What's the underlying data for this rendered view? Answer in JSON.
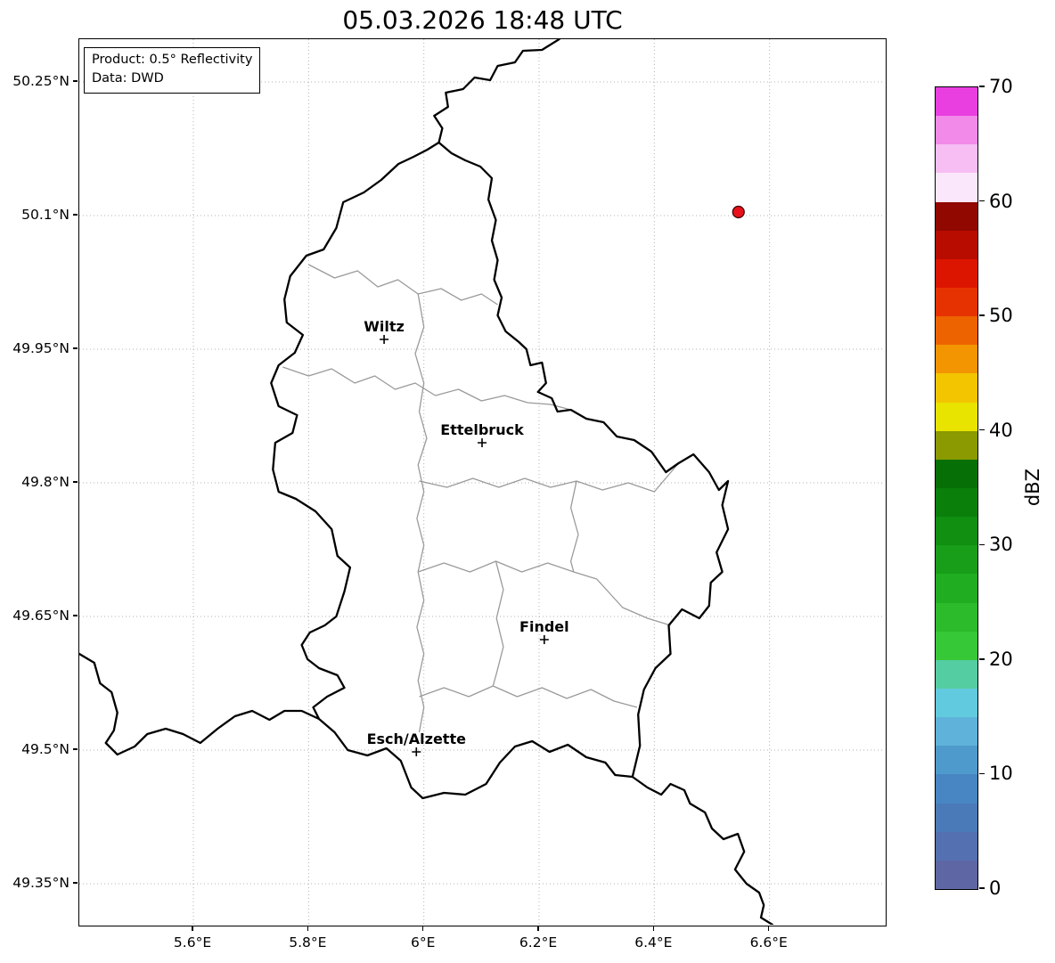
{
  "title": "05.03.2026 18:48 UTC",
  "info_box": {
    "line1": "Product: 0.5° Reflectivity",
    "line2": "Data: DWD"
  },
  "map": {
    "lon_min": 5.402,
    "lon_max": 6.8,
    "lat_min": 49.304,
    "lat_max": 50.298,
    "x_ticks": [
      {
        "lon": 5.6,
        "label": "5.6°E"
      },
      {
        "lon": 5.8,
        "label": "5.8°E"
      },
      {
        "lon": 6.0,
        "label": "6°E"
      },
      {
        "lon": 6.2,
        "label": "6.2°E"
      },
      {
        "lon": 6.4,
        "label": "6.4°E"
      },
      {
        "lon": 6.6,
        "label": "6.6°E"
      }
    ],
    "y_ticks": [
      {
        "lat": 50.25,
        "label": "50.25°N"
      },
      {
        "lat": 50.1,
        "label": "50.1°N"
      },
      {
        "lat": 49.95,
        "label": "49.95°N"
      },
      {
        "lat": 49.8,
        "label": "49.8°N"
      },
      {
        "lat": 49.65,
        "label": "49.65°N"
      },
      {
        "lat": 49.5,
        "label": "49.5°N"
      },
      {
        "lat": 49.35,
        "label": "49.35°N"
      }
    ],
    "cities": [
      {
        "name": "Wiltz",
        "lon": 5.931,
        "lat": 49.961
      },
      {
        "name": "Ettelbruck",
        "lon": 6.101,
        "lat": 49.845
      },
      {
        "name": "Findel",
        "lon": 6.209,
        "lat": 49.624
      },
      {
        "name": "Esch/Alzette",
        "lon": 5.987,
        "lat": 49.498
      }
    ],
    "marker": {
      "lon": 6.546,
      "lat": 50.104,
      "color": "#e8111b",
      "edge_color": "#3a0000"
    },
    "borders": {
      "country": [
        [
          [
            6.026,
            50.182
          ],
          [
            6.048,
            50.17
          ],
          [
            6.072,
            50.162
          ],
          [
            6.098,
            50.155
          ],
          [
            6.118,
            50.142
          ],
          [
            6.112,
            50.118
          ],
          [
            6.125,
            50.095
          ],
          [
            6.118,
            50.072
          ],
          [
            6.128,
            50.05
          ],
          [
            6.122,
            50.028
          ],
          [
            6.135,
            50.008
          ],
          [
            6.128,
            49.988
          ],
          [
            6.142,
            49.97
          ],
          [
            6.165,
            49.958
          ],
          [
            6.178,
            49.95
          ],
          [
            6.185,
            49.932
          ],
          [
            6.205,
            49.935
          ],
          [
            6.212,
            49.912
          ],
          [
            6.198,
            49.902
          ],
          [
            6.222,
            49.895
          ],
          [
            6.232,
            49.88
          ],
          [
            6.255,
            49.882
          ],
          [
            6.282,
            49.872
          ],
          [
            6.312,
            49.868
          ],
          [
            6.335,
            49.852
          ],
          [
            6.365,
            49.848
          ],
          [
            6.395,
            49.835
          ],
          [
            6.42,
            49.812
          ],
          [
            6.442,
            49.822
          ],
          [
            6.468,
            49.832
          ],
          [
            6.495,
            49.812
          ],
          [
            6.512,
            49.792
          ],
          [
            6.528,
            49.802
          ],
          [
            6.518,
            49.775
          ],
          [
            6.528,
            49.748
          ],
          [
            6.508,
            49.722
          ],
          [
            6.518,
            49.7
          ],
          [
            6.498,
            49.688
          ],
          [
            6.495,
            49.662
          ],
          [
            6.478,
            49.648
          ],
          [
            6.448,
            49.658
          ],
          [
            6.425,
            49.64
          ],
          [
            6.428,
            49.608
          ],
          [
            6.402,
            49.592
          ],
          [
            6.382,
            49.568
          ],
          [
            6.372,
            49.54
          ],
          [
            6.375,
            49.505
          ],
          [
            6.362,
            49.47
          ],
          [
            6.332,
            49.472
          ],
          [
            6.315,
            49.486
          ],
          [
            6.282,
            49.492
          ],
          [
            6.25,
            49.506
          ],
          [
            6.218,
            49.498
          ],
          [
            6.188,
            49.51
          ],
          [
            6.158,
            49.504
          ],
          [
            6.132,
            49.486
          ],
          [
            6.108,
            49.462
          ],
          [
            6.072,
            49.45
          ],
          [
            6.035,
            49.452
          ],
          [
            5.998,
            49.446
          ],
          [
            5.978,
            49.458
          ],
          [
            5.96,
            49.488
          ],
          [
            5.935,
            49.502
          ],
          [
            5.902,
            49.494
          ],
          [
            5.868,
            49.5
          ],
          [
            5.845,
            49.52
          ],
          [
            5.818,
            49.535
          ],
          [
            5.808,
            49.548
          ],
          [
            5.832,
            49.56
          ],
          [
            5.862,
            49.57
          ],
          [
            5.85,
            49.584
          ],
          [
            5.818,
            49.592
          ],
          [
            5.798,
            49.602
          ],
          [
            5.788,
            49.618
          ],
          [
            5.802,
            49.632
          ],
          [
            5.828,
            49.64
          ],
          [
            5.848,
            49.65
          ],
          [
            5.862,
            49.678
          ],
          [
            5.872,
            49.705
          ],
          [
            5.85,
            49.718
          ],
          [
            5.84,
            49.748
          ],
          [
            5.812,
            49.768
          ],
          [
            5.778,
            49.782
          ],
          [
            5.748,
            49.79
          ],
          [
            5.738,
            49.815
          ],
          [
            5.742,
            49.845
          ],
          [
            5.772,
            49.856
          ],
          [
            5.78,
            49.876
          ],
          [
            5.748,
            49.886
          ],
          [
            5.735,
            49.912
          ],
          [
            5.748,
            49.932
          ],
          [
            5.776,
            49.946
          ],
          [
            5.79,
            49.966
          ],
          [
            5.762,
            49.98
          ],
          [
            5.758,
            50.006
          ],
          [
            5.768,
            50.032
          ],
          [
            5.796,
            50.055
          ],
          [
            5.826,
            50.062
          ],
          [
            5.848,
            50.086
          ],
          [
            5.86,
            50.115
          ],
          [
            5.896,
            50.126
          ],
          [
            5.926,
            50.14
          ],
          [
            5.956,
            50.158
          ],
          [
            5.982,
            50.166
          ],
          [
            6.006,
            50.174
          ],
          [
            6.026,
            50.182
          ]
        ],
        [
          [
            6.026,
            50.182
          ],
          [
            6.032,
            50.198
          ],
          [
            6.018,
            50.212
          ],
          [
            6.042,
            50.222
          ],
          [
            6.038,
            50.238
          ],
          [
            6.068,
            50.242
          ],
          [
            6.088,
            50.255
          ],
          [
            6.115,
            50.252
          ],
          [
            6.128,
            50.268
          ],
          [
            6.158,
            50.272
          ],
          [
            6.172,
            50.285
          ],
          [
            6.205,
            50.286
          ],
          [
            6.235,
            50.298
          ]
        ],
        [
          [
            5.402,
            49.608
          ],
          [
            5.428,
            49.598
          ],
          [
            5.438,
            49.575
          ],
          [
            5.458,
            49.565
          ],
          [
            5.468,
            49.542
          ],
          [
            5.462,
            49.522
          ],
          [
            5.448,
            49.508
          ],
          [
            5.468,
            49.495
          ],
          [
            5.498,
            49.504
          ],
          [
            5.52,
            49.518
          ],
          [
            5.552,
            49.524
          ],
          [
            5.582,
            49.518
          ],
          [
            5.612,
            49.508
          ],
          [
            5.642,
            49.524
          ],
          [
            5.672,
            49.538
          ],
          [
            5.702,
            49.544
          ],
          [
            5.732,
            49.534
          ],
          [
            5.758,
            49.544
          ],
          [
            5.788,
            49.544
          ],
          [
            5.818,
            49.535
          ]
        ],
        [
          [
            6.362,
            49.47
          ],
          [
            6.388,
            49.458
          ],
          [
            6.412,
            49.45
          ],
          [
            6.428,
            49.462
          ],
          [
            6.452,
            49.455
          ],
          [
            6.462,
            49.44
          ],
          [
            6.488,
            49.43
          ],
          [
            6.5,
            49.412
          ],
          [
            6.52,
            49.4
          ],
          [
            6.545,
            49.406
          ],
          [
            6.556,
            49.386
          ],
          [
            6.54,
            49.366
          ],
          [
            6.56,
            49.35
          ],
          [
            6.582,
            49.34
          ],
          [
            6.59,
            49.326
          ],
          [
            6.585,
            49.312
          ],
          [
            6.605,
            49.304
          ]
        ]
      ],
      "regions": [
        [
          [
            5.8,
            50.045
          ],
          [
            5.845,
            50.03
          ],
          [
            5.885,
            50.038
          ],
          [
            5.92,
            50.02
          ],
          [
            5.955,
            50.028
          ],
          [
            5.99,
            50.012
          ],
          [
            6.03,
            50.018
          ],
          [
            6.065,
            50.005
          ],
          [
            6.1,
            50.012
          ],
          [
            6.128,
            50.0
          ]
        ],
        [
          [
            5.755,
            49.93
          ],
          [
            5.8,
            49.92
          ],
          [
            5.84,
            49.928
          ],
          [
            5.88,
            49.912
          ],
          [
            5.915,
            49.92
          ],
          [
            5.95,
            49.905
          ],
          [
            5.985,
            49.912
          ],
          [
            6.02,
            49.898
          ],
          [
            6.06,
            49.905
          ],
          [
            6.1,
            49.892
          ],
          [
            6.14,
            49.898
          ],
          [
            6.18,
            49.89
          ],
          [
            6.22,
            49.888
          ],
          [
            6.255,
            49.882
          ]
        ],
        [
          [
            5.99,
            50.012
          ],
          [
            6.0,
            49.975
          ],
          [
            5.985,
            49.945
          ],
          [
            6.0,
            49.912
          ],
          [
            5.992,
            49.88
          ],
          [
            6.005,
            49.85
          ],
          [
            5.99,
            49.82
          ],
          [
            6.0,
            49.79
          ],
          [
            5.988,
            49.76
          ],
          [
            6.0,
            49.73
          ],
          [
            5.99,
            49.7
          ],
          [
            6.0,
            49.668
          ],
          [
            5.988,
            49.638
          ],
          [
            6.0,
            49.608
          ],
          [
            5.99,
            49.578
          ],
          [
            6.0,
            49.548
          ],
          [
            5.992,
            49.52
          ]
        ],
        [
          [
            5.992,
            49.802
          ],
          [
            6.04,
            49.795
          ],
          [
            6.085,
            49.805
          ],
          [
            6.13,
            49.795
          ],
          [
            6.175,
            49.805
          ],
          [
            6.22,
            49.795
          ],
          [
            6.265,
            49.802
          ],
          [
            6.31,
            49.792
          ],
          [
            6.355,
            49.8
          ],
          [
            6.4,
            49.79
          ],
          [
            6.442,
            49.822
          ]
        ],
        [
          [
            5.99,
            49.7
          ],
          [
            6.035,
            49.71
          ],
          [
            6.08,
            49.7
          ],
          [
            6.125,
            49.712
          ],
          [
            6.17,
            49.7
          ],
          [
            6.215,
            49.71
          ],
          [
            6.26,
            49.7
          ],
          [
            6.3,
            49.692
          ],
          [
            6.345,
            49.66
          ],
          [
            6.388,
            49.648
          ],
          [
            6.428,
            49.64
          ]
        ],
        [
          [
            5.992,
            49.56
          ],
          [
            6.035,
            49.57
          ],
          [
            6.078,
            49.56
          ],
          [
            6.12,
            49.572
          ],
          [
            6.162,
            49.56
          ],
          [
            6.205,
            49.57
          ],
          [
            6.248,
            49.558
          ],
          [
            6.29,
            49.568
          ],
          [
            6.33,
            49.555
          ],
          [
            6.37,
            49.548
          ]
        ],
        [
          [
            6.265,
            49.802
          ],
          [
            6.255,
            49.772
          ],
          [
            6.268,
            49.742
          ],
          [
            6.255,
            49.712
          ],
          [
            6.26,
            49.7
          ]
        ],
        [
          [
            6.125,
            49.712
          ],
          [
            6.138,
            49.68
          ],
          [
            6.126,
            49.648
          ],
          [
            6.138,
            49.616
          ],
          [
            6.126,
            49.586
          ],
          [
            6.12,
            49.572
          ]
        ]
      ]
    }
  },
  "colorbar": {
    "label": "dBZ",
    "min": 0,
    "max": 70,
    "ticks": [
      0,
      10,
      20,
      30,
      40,
      50,
      60,
      70
    ],
    "band_step_dbz": 2.5,
    "colors_bottom_to_top": [
      "#5f66a4",
      "#5570b0",
      "#4b7ab8",
      "#4786c2",
      "#4f9acd",
      "#5fb2da",
      "#62cade",
      "#55cda2",
      "#37c837",
      "#2bbb2b",
      "#21ad21",
      "#189e18",
      "#108f10",
      "#0a7f0a",
      "#067006",
      "#8a9a00",
      "#e8e400",
      "#f2c500",
      "#f29500",
      "#ed6300",
      "#e63200",
      "#dc1500",
      "#b80c00",
      "#900800",
      "#fbe7fb",
      "#f7bef3",
      "#f28ae9",
      "#ea3fe0"
    ]
  }
}
